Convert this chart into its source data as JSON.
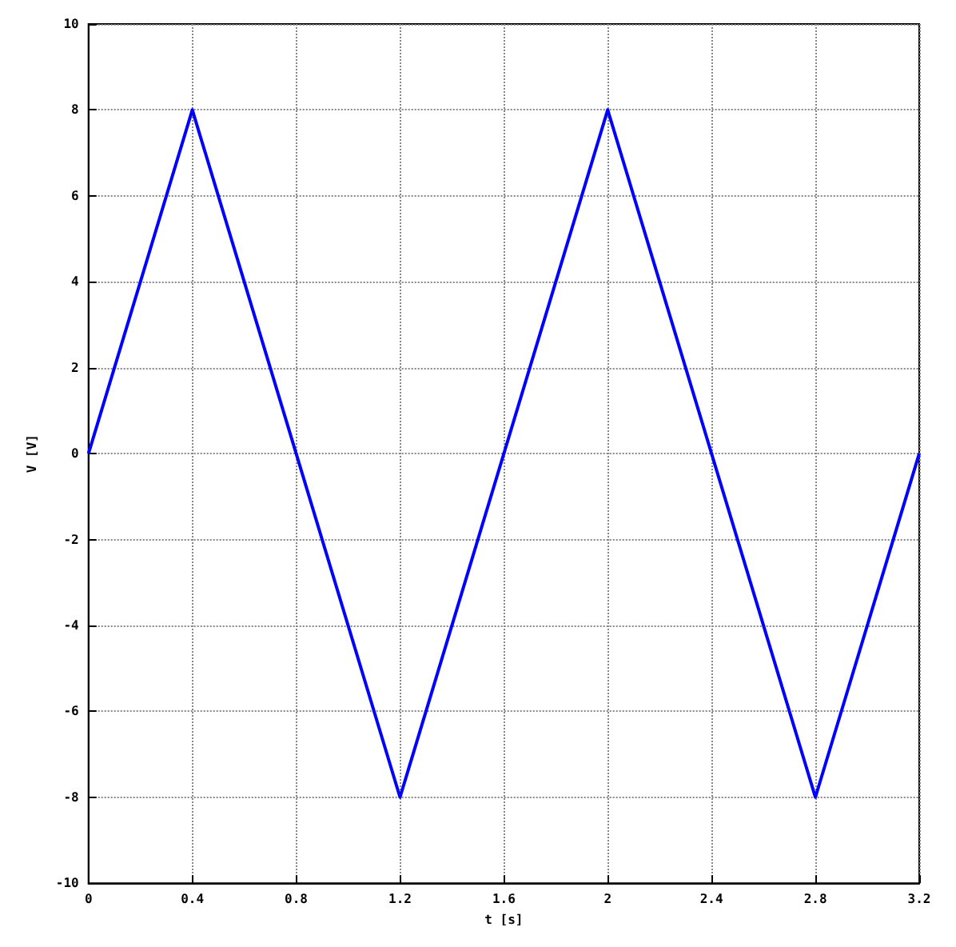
{
  "chart_data": {
    "type": "line",
    "xlabel": "t [s]",
    "ylabel": "V [V]",
    "x": [
      0,
      0.4,
      1.2,
      2,
      2.8,
      3.2
    ],
    "series": [
      {
        "color": "#0000ff",
        "values": [
          0,
          8,
          -8,
          8,
          -8,
          0
        ]
      }
    ],
    "xlim": [
      0,
      3.2
    ],
    "xticks": [
      0,
      0.4,
      0.8,
      1.2,
      1.6,
      2,
      2.4,
      2.8,
      3.2
    ],
    "ylim": [
      -10,
      10
    ],
    "yticks": [
      -10,
      -8,
      -6,
      -4,
      -2,
      0,
      2,
      4,
      6,
      8,
      10
    ],
    "grid": true,
    "marker": "none",
    "line_style": "solid"
  }
}
